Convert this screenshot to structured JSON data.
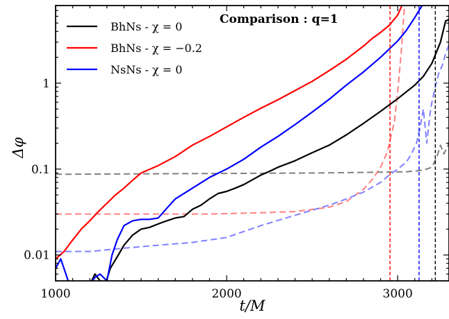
{
  "chart_data": {
    "type": "line",
    "title": "Comparison : q=1",
    "xlabel": "t/M",
    "ylabel": "Δφ",
    "xlim": [
      1000,
      3300
    ],
    "ylim": [
      0.005,
      8
    ],
    "yscale": "log",
    "xticks": [
      1000,
      2000,
      3000
    ],
    "xtick_labels": [
      "1000",
      "2000",
      "3000"
    ],
    "yticks": [
      0.01,
      0.1,
      1
    ],
    "ytick_labels": [
      "0.01",
      "0.1",
      "1"
    ],
    "legend_position": "top-left",
    "series": [
      {
        "name": "BhNs - χ = 0",
        "color": "#000000",
        "dashed": false,
        "opacity": 1.0,
        "x": [
          1000,
          1050,
          1100,
          1160,
          1200,
          1230,
          1260,
          1290,
          1320,
          1360,
          1400,
          1450,
          1500,
          1550,
          1600,
          1650,
          1700,
          1750,
          1800,
          1850,
          1900,
          1950,
          2000,
          2050,
          2100,
          2150,
          2200,
          2250,
          2300,
          2400,
          2500,
          2600,
          2700,
          2800,
          2900,
          3000,
          3100,
          3150,
          3200,
          3250,
          3280,
          3300
        ],
        "y": [
          0.004,
          0.004,
          0.004,
          0.004,
          0.0045,
          0.006,
          0.005,
          0.0045,
          0.007,
          0.0095,
          0.013,
          0.017,
          0.02,
          0.021,
          0.023,
          0.025,
          0.027,
          0.028,
          0.034,
          0.038,
          0.045,
          0.052,
          0.055,
          0.06,
          0.066,
          0.075,
          0.085,
          0.094,
          0.105,
          0.125,
          0.155,
          0.19,
          0.25,
          0.34,
          0.47,
          0.66,
          0.95,
          1.2,
          1.7,
          3.0,
          5.3,
          5.5
        ]
      },
      {
        "name": "BhNs - χ = −0.2",
        "color": "#ff0000",
        "dashed": false,
        "opacity": 1.0,
        "x": [
          1000,
          1050,
          1100,
          1150,
          1200,
          1250,
          1300,
          1350,
          1400,
          1450,
          1500,
          1600,
          1700,
          1800,
          1900,
          2000,
          2100,
          2200,
          2300,
          2400,
          2500,
          2600,
          2700,
          2800,
          2850,
          2900,
          2950,
          3000,
          3030
        ],
        "y": [
          0.009,
          0.011,
          0.015,
          0.02,
          0.025,
          0.032,
          0.04,
          0.05,
          0.06,
          0.074,
          0.09,
          0.11,
          0.14,
          0.19,
          0.24,
          0.31,
          0.4,
          0.51,
          0.64,
          0.82,
          1.05,
          1.4,
          1.9,
          2.7,
          3.3,
          3.9,
          4.7,
          6.2,
          8.5
        ]
      },
      {
        "name": "NsNs - χ = 0",
        "color": "#0000ff",
        "dashed": false,
        "opacity": 1.0,
        "x": [
          1000,
          1030,
          1060,
          1090,
          1120,
          1160,
          1200,
          1230,
          1260,
          1300,
          1330,
          1360,
          1400,
          1450,
          1500,
          1550,
          1600,
          1650,
          1700,
          1800,
          1900,
          2000,
          2100,
          2200,
          2300,
          2400,
          2500,
          2600,
          2700,
          2800,
          2900,
          3000,
          3050,
          3100,
          3130,
          3160
        ],
        "y": [
          0.007,
          0.009,
          0.006,
          0.004,
          0.004,
          0.004,
          0.0045,
          0.0055,
          0.006,
          0.005,
          0.01,
          0.015,
          0.022,
          0.025,
          0.026,
          0.026,
          0.027,
          0.035,
          0.045,
          0.06,
          0.08,
          0.1,
          0.13,
          0.18,
          0.24,
          0.33,
          0.46,
          0.65,
          0.95,
          1.35,
          2.0,
          3.1,
          4.1,
          5.8,
          7.3,
          9.0
        ]
      },
      {
        "name": "",
        "color": "#808080",
        "dashed": true,
        "opacity": 1.0,
        "x": [
          1000,
          1500,
          2000,
          2500,
          2900,
          3050,
          3150,
          3200,
          3230,
          3250,
          3270,
          3290,
          3300
        ],
        "y": [
          0.087,
          0.088,
          0.089,
          0.09,
          0.092,
          0.093,
          0.097,
          0.105,
          0.14,
          0.19,
          0.15,
          0.18,
          0.2
        ]
      },
      {
        "name": "",
        "color": "#ff8080",
        "dashed": true,
        "opacity": 1.0,
        "x": [
          1000,
          1300,
          1600,
          1900,
          2200,
          2400,
          2600,
          2700,
          2800,
          2850,
          2900,
          2940,
          2980,
          3000,
          3020,
          3040
        ],
        "y": [
          0.03,
          0.03,
          0.03,
          0.03,
          0.031,
          0.032,
          0.036,
          0.042,
          0.058,
          0.075,
          0.105,
          0.16,
          0.35,
          0.8,
          2.2,
          8.0
        ]
      },
      {
        "name": "",
        "color": "#8080ff",
        "dashed": true,
        "opacity": 1.0,
        "x": [
          1000,
          1200,
          1400,
          1600,
          1800,
          2000,
          2200,
          2400,
          2600,
          2700,
          2800,
          2900,
          2950,
          3000,
          3050,
          3080,
          3110,
          3130,
          3150,
          3170,
          3190,
          3200,
          3220,
          3240,
          3260,
          3280,
          3300
        ],
        "y": [
          0.011,
          0.011,
          0.012,
          0.013,
          0.014,
          0.016,
          0.022,
          0.029,
          0.038,
          0.045,
          0.054,
          0.07,
          0.085,
          0.1,
          0.12,
          0.15,
          0.2,
          0.3,
          0.5,
          0.2,
          0.45,
          0.6,
          0.9,
          1.3,
          1.6,
          2.2,
          2.8
        ]
      }
    ],
    "vlines": [
      {
        "x": 2955,
        "color": "#ff0000"
      },
      {
        "x": 3125,
        "color": "#0000ff"
      },
      {
        "x": 3220,
        "color": "#000000"
      }
    ]
  }
}
